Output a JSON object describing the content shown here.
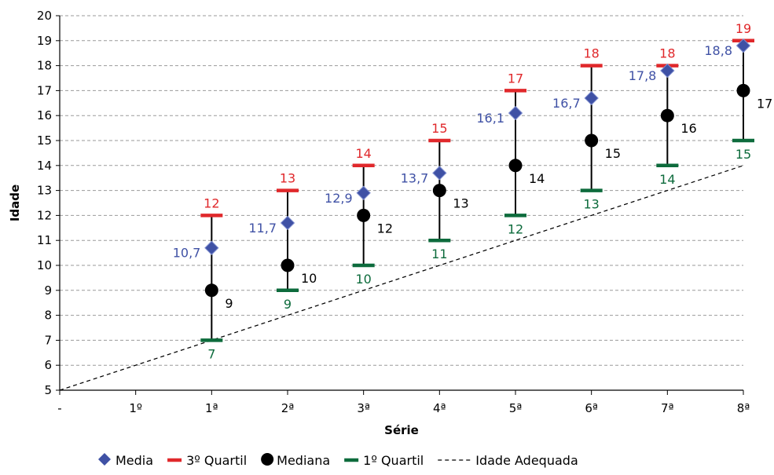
{
  "chart_data": {
    "type": "scatter",
    "categories": [
      "-",
      "1º",
      "1ª",
      "2ª",
      "3ª",
      "4ª",
      "5ª",
      "6ª",
      "7ª",
      "8ª"
    ],
    "xlabel": "Série",
    "ylabel": "Idade",
    "ylim": [
      5,
      20
    ],
    "yticks": [
      5,
      6,
      7,
      8,
      9,
      10,
      11,
      12,
      13,
      14,
      15,
      16,
      17,
      18,
      19,
      20
    ],
    "grid": "horizontal dashed",
    "legend_position": "bottom",
    "series": [
      {
        "name": "Media",
        "marker": "diamond",
        "color": "#3f51a5",
        "points": [
          {
            "category": "1ª",
            "value": 10.7,
            "label": "10,7"
          },
          {
            "category": "2ª",
            "value": 11.7,
            "label": "11,7"
          },
          {
            "category": "3ª",
            "value": 12.9,
            "label": "12,9"
          },
          {
            "category": "4ª",
            "value": 13.7,
            "label": "13,7"
          },
          {
            "category": "5ª",
            "value": 16.1,
            "label": "16,1"
          },
          {
            "category": "6ª",
            "value": 16.7,
            "label": "16,7"
          },
          {
            "category": "7ª",
            "value": 17.8,
            "label": "17,8"
          },
          {
            "category": "8ª",
            "value": 18.8,
            "label": "18,8"
          }
        ]
      },
      {
        "name": "3º Quartil",
        "marker": "dash",
        "color": "#e0282b",
        "points": [
          {
            "category": "1ª",
            "value": 12,
            "label": "12"
          },
          {
            "category": "2ª",
            "value": 13,
            "label": "13"
          },
          {
            "category": "3ª",
            "value": 14,
            "label": "14"
          },
          {
            "category": "4ª",
            "value": 15,
            "label": "15"
          },
          {
            "category": "5ª",
            "value": 17,
            "label": "17"
          },
          {
            "category": "6ª",
            "value": 18,
            "label": "18"
          },
          {
            "category": "7ª",
            "value": 18,
            "label": "18"
          },
          {
            "category": "8ª",
            "value": 19,
            "label": "19"
          }
        ]
      },
      {
        "name": "Mediana",
        "marker": "circle",
        "color": "#000000",
        "points": [
          {
            "category": "1ª",
            "value": 9,
            "label": "9"
          },
          {
            "category": "2ª",
            "value": 10,
            "label": "10"
          },
          {
            "category": "3ª",
            "value": 12,
            "label": "12"
          },
          {
            "category": "4ª",
            "value": 13,
            "label": "13"
          },
          {
            "category": "5ª",
            "value": 14,
            "label": "14"
          },
          {
            "category": "6ª",
            "value": 15,
            "label": "15"
          },
          {
            "category": "7ª",
            "value": 16,
            "label": "16"
          },
          {
            "category": "8ª",
            "value": 17,
            "label": "17"
          }
        ]
      },
      {
        "name": "1º Quartil",
        "marker": "dash",
        "color": "#0d6b3c",
        "points": [
          {
            "category": "1ª",
            "value": 7,
            "label": "7"
          },
          {
            "category": "2ª",
            "value": 9,
            "label": "9"
          },
          {
            "category": "3ª",
            "value": 10,
            "label": "10"
          },
          {
            "category": "4ª",
            "value": 11,
            "label": "11"
          },
          {
            "category": "5ª",
            "value": 12,
            "label": "12"
          },
          {
            "category": "6ª",
            "value": 13,
            "label": "13"
          },
          {
            "category": "7ª",
            "value": 14,
            "label": "14"
          },
          {
            "category": "8ª",
            "value": 15,
            "label": "15"
          }
        ]
      },
      {
        "name": "Idade Adequada",
        "line": "dashed",
        "color": "#000000",
        "points": [
          {
            "category": "-",
            "value": 5
          },
          {
            "category": "8ª",
            "value": 14
          }
        ]
      }
    ]
  }
}
